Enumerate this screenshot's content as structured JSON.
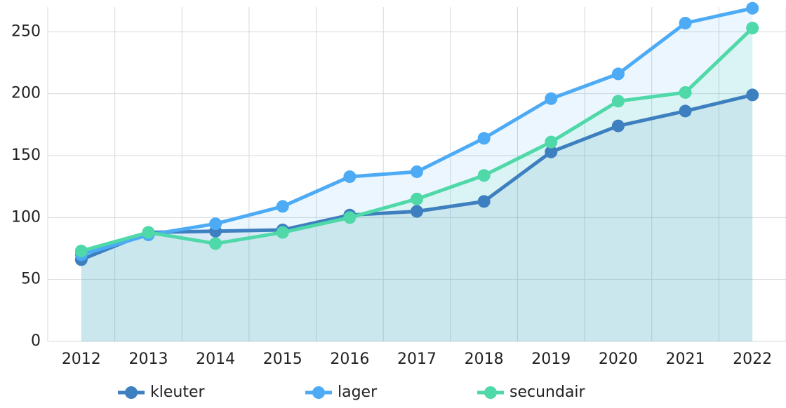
{
  "chart_data": {
    "type": "line",
    "categories": [
      "2012",
      "2013",
      "2014",
      "2015",
      "2016",
      "2017",
      "2018",
      "2019",
      "2020",
      "2021",
      "2022"
    ],
    "series": [
      {
        "name": "kleuter",
        "color": "#3d7fbf",
        "values": [
          66,
          88,
          89,
          90,
          102,
          105,
          113,
          153,
          174,
          186,
          199
        ]
      },
      {
        "name": "lager",
        "color": "#4dabf5",
        "values": [
          70,
          86,
          95,
          109,
          133,
          137,
          164,
          196,
          216,
          257,
          269
        ]
      },
      {
        "name": "secundair",
        "color": "#4fd8a8",
        "values": [
          73,
          88,
          79,
          88,
          100,
          115,
          134,
          161,
          194,
          201,
          253
        ]
      }
    ],
    "ylim": [
      0,
      270
    ],
    "yticks": [
      0,
      50,
      100,
      150,
      200,
      250
    ],
    "grid": true,
    "legend": "bottom"
  }
}
